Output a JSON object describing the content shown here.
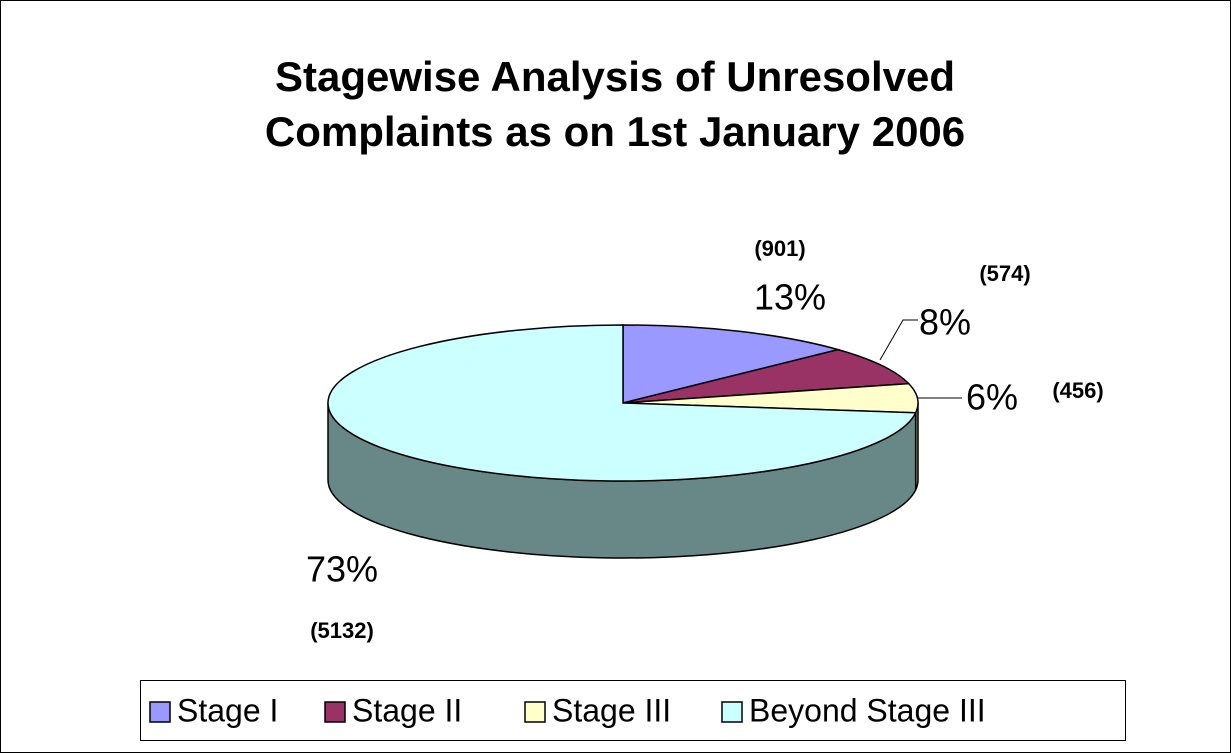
{
  "chart_data": {
    "type": "pie3d",
    "title": [
      "Stagewise Analysis of Unresolved",
      "Complaints as on 1st January 2006"
    ],
    "categories": [
      "Stage I",
      "Stage II",
      "Stage III",
      "Beyond Stage III"
    ],
    "values": [
      13,
      8,
      6,
      73
    ],
    "value_labels": [
      "13%",
      "8%",
      "6%",
      "73%"
    ],
    "counts": [
      901,
      574,
      456,
      5132
    ],
    "count_labels": [
      "(901)",
      "(574)",
      "(456)",
      "(5132)"
    ],
    "colors": [
      "#9999ff",
      "#993366",
      "#ffffcc",
      "#ccffff"
    ],
    "side_colors": [
      "#666699",
      "#662244",
      "#aaaa88",
      "#688888"
    ],
    "legend": "bottom"
  }
}
